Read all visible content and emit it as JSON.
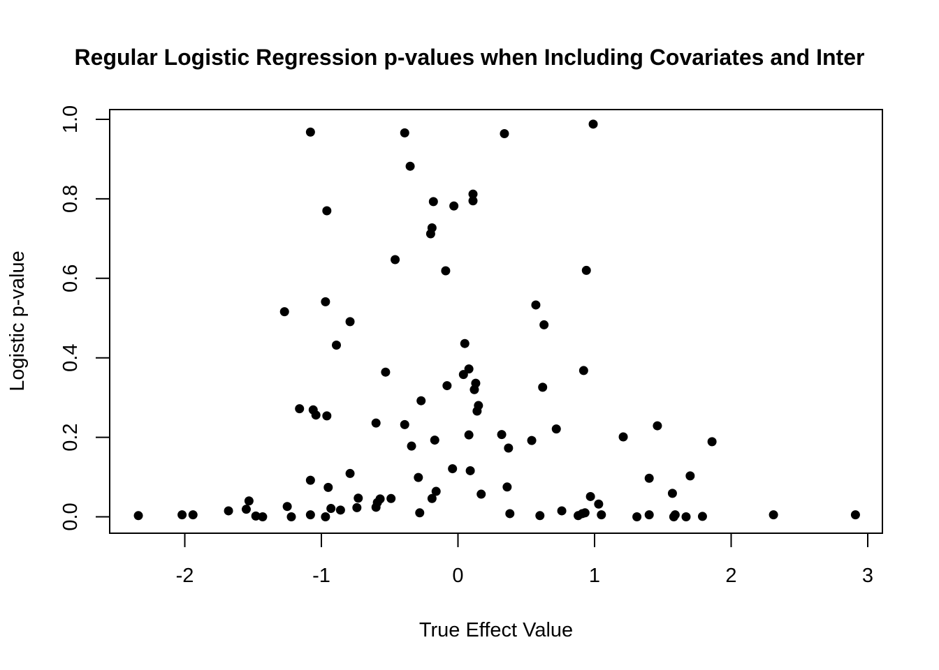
{
  "chart_data": {
    "type": "scatter",
    "title": "Regular Logistic Regression p-values when Including Covariates and Inter",
    "xlabel": "True Effect Value",
    "ylabel": "Logistic p-value",
    "xlim": [
      -2.5,
      3.1
    ],
    "ylim": [
      -0.04,
      1.03
    ],
    "xticks": [
      -2,
      -1,
      0,
      1,
      2,
      3
    ],
    "yticks": [
      0.0,
      0.2,
      0.4,
      0.6,
      0.8,
      1.0
    ],
    "xtick_labels": [
      "-2",
      "-1",
      "0",
      "1",
      "2",
      "3"
    ],
    "ytick_labels": [
      "0.0",
      "0.2",
      "0.4",
      "0.6",
      "0.8",
      "1.0"
    ],
    "grid": false,
    "marker_color": "#000000",
    "points": [
      [
        -2.34,
        0.003
      ],
      [
        -2.02,
        0.005
      ],
      [
        -1.94,
        0.005
      ],
      [
        -1.68,
        0.015
      ],
      [
        -1.55,
        0.019
      ],
      [
        -1.53,
        0.04
      ],
      [
        -1.48,
        0.002
      ],
      [
        -1.43,
        0.0
      ],
      [
        -1.27,
        0.516
      ],
      [
        -1.25,
        0.026
      ],
      [
        -1.22,
        0.0
      ],
      [
        -1.16,
        0.272
      ],
      [
        -1.08,
        0.968
      ],
      [
        -1.08,
        0.092
      ],
      [
        -1.08,
        0.005
      ],
      [
        -1.06,
        0.269
      ],
      [
        -1.04,
        0.256
      ],
      [
        -0.97,
        0.541
      ],
      [
        -0.97,
        0.0
      ],
      [
        -0.96,
        0.77
      ],
      [
        -0.96,
        0.254
      ],
      [
        -0.95,
        0.074
      ],
      [
        -0.93,
        0.021
      ],
      [
        -0.89,
        0.432
      ],
      [
        -0.86,
        0.017
      ],
      [
        -0.79,
        0.491
      ],
      [
        -0.79,
        0.109
      ],
      [
        -0.74,
        0.023
      ],
      [
        -0.73,
        0.047
      ],
      [
        -0.6,
        0.024
      ],
      [
        -0.6,
        0.236
      ],
      [
        -0.59,
        0.036
      ],
      [
        -0.57,
        0.045
      ],
      [
        -0.53,
        0.364
      ],
      [
        -0.49,
        0.046
      ],
      [
        -0.46,
        0.647
      ],
      [
        -0.39,
        0.966
      ],
      [
        -0.39,
        0.232
      ],
      [
        -0.35,
        0.882
      ],
      [
        -0.34,
        0.178
      ],
      [
        -0.29,
        0.099
      ],
      [
        -0.28,
        0.01
      ],
      [
        -0.27,
        0.292
      ],
      [
        -0.2,
        0.712
      ],
      [
        -0.19,
        0.727
      ],
      [
        -0.18,
        0.793
      ],
      [
        -0.19,
        0.046
      ],
      [
        -0.17,
        0.193
      ],
      [
        -0.16,
        0.064
      ],
      [
        -0.09,
        0.619
      ],
      [
        -0.08,
        0.33
      ],
      [
        -0.04,
        0.121
      ],
      [
        -0.03,
        0.782
      ],
      [
        0.04,
        0.358
      ],
      [
        0.05,
        0.436
      ],
      [
        0.08,
        0.372
      ],
      [
        0.08,
        0.206
      ],
      [
        0.09,
        0.116
      ],
      [
        0.11,
        0.795
      ],
      [
        0.11,
        0.812
      ],
      [
        0.12,
        0.32
      ],
      [
        0.13,
        0.336
      ],
      [
        0.14,
        0.266
      ],
      [
        0.15,
        0.28
      ],
      [
        0.17,
        0.057
      ],
      [
        0.32,
        0.207
      ],
      [
        0.34,
        0.964
      ],
      [
        0.36,
        0.075
      ],
      [
        0.37,
        0.173
      ],
      [
        0.38,
        0.008
      ],
      [
        0.54,
        0.192
      ],
      [
        0.57,
        0.533
      ],
      [
        0.6,
        0.003
      ],
      [
        0.62,
        0.326
      ],
      [
        0.63,
        0.483
      ],
      [
        0.72,
        0.221
      ],
      [
        0.76,
        0.015
      ],
      [
        0.88,
        0.003
      ],
      [
        0.91,
        0.008
      ],
      [
        0.92,
        0.368
      ],
      [
        0.93,
        0.01
      ],
      [
        0.94,
        0.62
      ],
      [
        0.97,
        0.051
      ],
      [
        0.99,
        0.988
      ],
      [
        1.03,
        0.032
      ],
      [
        1.05,
        0.005
      ],
      [
        1.21,
        0.201
      ],
      [
        1.31,
        0.0
      ],
      [
        1.4,
        0.097
      ],
      [
        1.4,
        0.005
      ],
      [
        1.46,
        0.229
      ],
      [
        1.57,
        0.059
      ],
      [
        1.58,
        0.0
      ],
      [
        1.59,
        0.005
      ],
      [
        1.67,
        0.0
      ],
      [
        1.7,
        0.103
      ],
      [
        1.79,
        0.001
      ],
      [
        1.86,
        0.189
      ],
      [
        2.31,
        0.005
      ],
      [
        2.91,
        0.005
      ]
    ]
  }
}
